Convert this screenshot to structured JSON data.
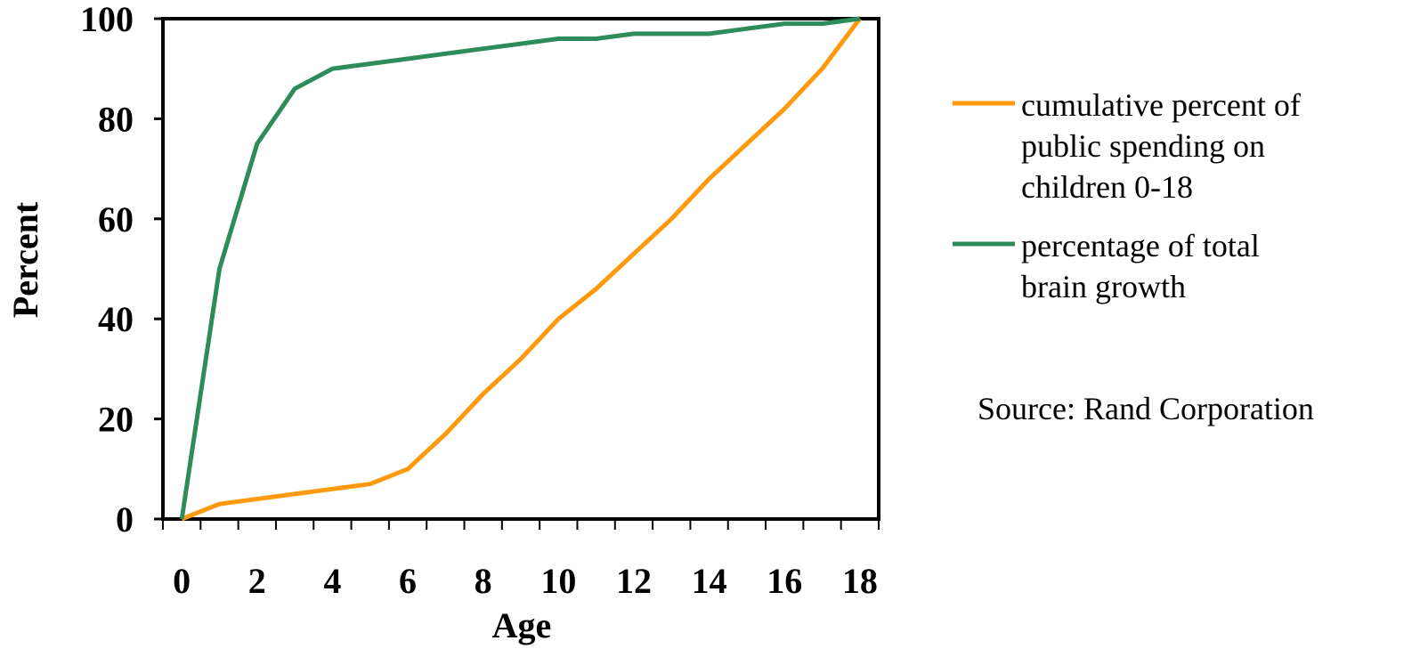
{
  "chart_data": {
    "type": "line",
    "xlabel": "Age",
    "ylabel": "Percent",
    "xlim": [
      -0.5,
      18.5
    ],
    "ylim": [
      0,
      100
    ],
    "x_ticks": [
      "0",
      "2",
      "4",
      "6",
      "8",
      "10",
      "12",
      "14",
      "16",
      "18"
    ],
    "y_ticks": [
      "0",
      "20",
      "40",
      "60",
      "80",
      "100"
    ],
    "x": [
      0,
      1,
      2,
      3,
      4,
      5,
      6,
      7,
      8,
      9,
      10,
      11,
      12,
      13,
      14,
      15,
      16,
      17,
      18
    ],
    "grid": false,
    "legend_position": "right",
    "series": [
      {
        "name": "cumulative percent of public spending on children 0-18",
        "legend_lines": [
          "cumulative percent of",
          "public spending on",
          "children 0-18"
        ],
        "color": "#FF9A0E",
        "values": [
          0,
          3,
          4,
          5,
          6,
          7,
          10,
          17,
          25,
          32,
          40,
          46,
          53,
          60,
          68,
          75,
          82,
          90,
          100
        ]
      },
      {
        "name": "percentage of total brain growth",
        "legend_lines": [
          "percentage of total",
          "brain growth"
        ],
        "color": "#2E8B5A",
        "values": [
          0,
          50,
          75,
          86,
          90,
          91,
          92,
          93,
          94,
          95,
          96,
          96,
          97,
          97,
          97,
          98,
          99,
          99,
          100
        ]
      }
    ],
    "annotations": [
      "Source: Rand Corporation"
    ]
  }
}
